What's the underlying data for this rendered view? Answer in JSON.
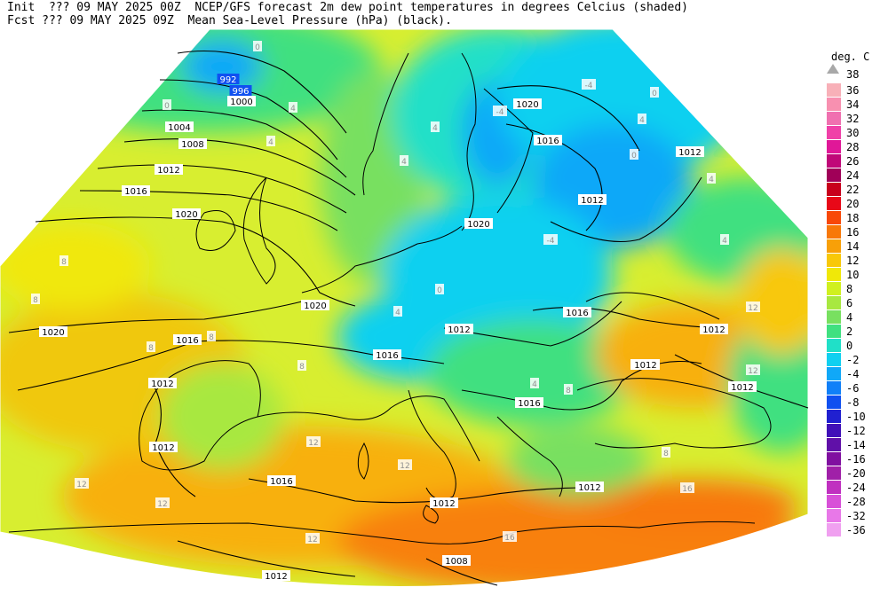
{
  "header": {
    "line1": "Init  ??? 09 MAY 2025 00Z  NCEP/GFS forecast 2m dew point temperatures in degrees Celcius (shaded)",
    "line2": "Fcst ??? 09 MAY 2025 09Z  Mean Sea-Level Pressure (hPa) (black)."
  },
  "legend": {
    "unit": "deg. C",
    "top_label": "38",
    "items": [
      {
        "label": "36",
        "color": "#f8b0b8"
      },
      {
        "label": "34",
        "color": "#f890b0"
      },
      {
        "label": "32",
        "color": "#f070b0"
      },
      {
        "label": "30",
        "color": "#f040a8"
      },
      {
        "label": "28",
        "color": "#e01898"
      },
      {
        "label": "26",
        "color": "#c00878"
      },
      {
        "label": "24",
        "color": "#a00058"
      },
      {
        "label": "22",
        "color": "#c8001c"
      },
      {
        "label": "20",
        "color": "#e80818"
      },
      {
        "label": "18",
        "color": "#f84808"
      },
      {
        "label": "16",
        "color": "#f87808"
      },
      {
        "label": "14",
        "color": "#f8a008"
      },
      {
        "label": "12",
        "color": "#f8c808"
      },
      {
        "label": "10",
        "color": "#f0e808"
      },
      {
        "label": "8",
        "color": "#d0f020"
      },
      {
        "label": "6",
        "color": "#a8e840"
      },
      {
        "label": "4",
        "color": "#78e060"
      },
      {
        "label": "2",
        "color": "#40e080"
      },
      {
        "label": "0",
        "color": "#20e0c8"
      },
      {
        "label": "-2",
        "color": "#10d0f0"
      },
      {
        "label": "-4",
        "color": "#10a8f8"
      },
      {
        "label": "-6",
        "color": "#1080f8"
      },
      {
        "label": "-8",
        "color": "#1050f0"
      },
      {
        "label": "-10",
        "color": "#2020d0"
      },
      {
        "label": "-12",
        "color": "#4010b8"
      },
      {
        "label": "-14",
        "color": "#6010a8"
      },
      {
        "label": "-16",
        "color": "#8010a0"
      },
      {
        "label": "-20",
        "color": "#a020a8"
      },
      {
        "label": "-24",
        "color": "#c030c0"
      },
      {
        "label": "-28",
        "color": "#d850d8"
      },
      {
        "label": "-32",
        "color": "#e878e8"
      },
      {
        "label": "-36",
        "color": "#f0a0f0"
      }
    ]
  },
  "isobar_labels": [
    "992",
    "996",
    "1000",
    "1004",
    "1008",
    "1012",
    "1016",
    "1020",
    "1020",
    "1016",
    "1012",
    "1020",
    "1016",
    "1012",
    "1012",
    "1016",
    "1020",
    "1016",
    "1012",
    "1012",
    "1016",
    "1012",
    "1012",
    "1012",
    "1012",
    "1012",
    "1012",
    "1008",
    "1016",
    "1012",
    "1020"
  ],
  "dewpoint_labels": [
    "0",
    "0",
    "4",
    "4",
    "4",
    "4",
    "-4",
    "-4",
    "-4",
    "0",
    "4",
    "0",
    "4",
    "4",
    "8",
    "8",
    "8",
    "8",
    "12",
    "12",
    "12",
    "12",
    "12",
    "12",
    "12",
    "16",
    "16",
    "8",
    "8",
    "4",
    "0",
    "4",
    "8"
  ]
}
